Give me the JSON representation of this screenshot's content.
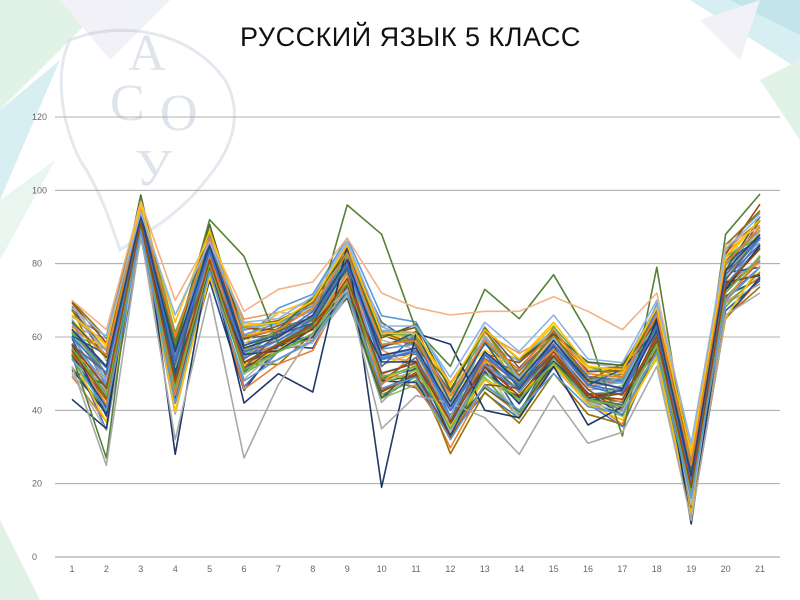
{
  "slide": {
    "title": "РУССКИЙ ЯЗЫК 5 КЛАСС",
    "logo_letters": [
      "А",
      "С",
      "О",
      "У"
    ]
  },
  "colors": {
    "gridline": "#9a9a9a",
    "axis": "#9a9a9a",
    "background": "#ffffff",
    "decor": [
      "#b7e3ea",
      "#c7ead2",
      "#e6e6f2"
    ],
    "series_palette": [
      "#4472c4",
      "#ed7d31",
      "#a5a5a5",
      "#ffc000",
      "#5b9bd5",
      "#70ad47",
      "#264478",
      "#9e480e",
      "#636363",
      "#997300",
      "#255e91",
      "#43682b",
      "#698ed0",
      "#f1975a",
      "#b7b7b7",
      "#ffcd33",
      "#7cafdd",
      "#8cc168"
    ]
  },
  "chart_data": {
    "type": "line",
    "title": "РУССКИЙ ЯЗЫК 5 КЛАСС",
    "xlabel": "",
    "ylabel": "",
    "x": [
      1,
      2,
      3,
      4,
      5,
      6,
      7,
      8,
      9,
      10,
      11,
      12,
      13,
      14,
      15,
      16,
      17,
      18,
      19,
      20,
      21
    ],
    "x_tick_labels": [
      "1",
      "2",
      "3",
      "4",
      "5",
      "6",
      "7",
      "8",
      "9",
      "10",
      "11",
      "12",
      "13",
      "14",
      "15",
      "16",
      "17",
      "18",
      "19",
      "20",
      "21"
    ],
    "y_tick_labels": [
      "0",
      "20",
      "40",
      "60",
      "80",
      "100",
      "120"
    ],
    "ylim": [
      0,
      120
    ],
    "grid": true,
    "legend": "none",
    "series_count": 60,
    "band": {
      "center": [
        60,
        48,
        93,
        50,
        83,
        55,
        60,
        64,
        78,
        53,
        55,
        38,
        54,
        46,
        57,
        46,
        45,
        62,
        22,
        75,
        85
      ],
      "spread": [
        9,
        12,
        5,
        10,
        6,
        8,
        6,
        6,
        7,
        10,
        7,
        8,
        8,
        8,
        6,
        6,
        7,
        7,
        10,
        9,
        10
      ]
    },
    "series": [
      {
        "values": [
          43,
          35,
          97,
          28,
          81,
          42,
          50,
          45,
          85,
          19,
          61,
          58,
          40,
          38,
          52,
          36,
          41,
          65,
          9,
          73,
          85
        ]
      },
      {
        "values": [
          55,
          27,
          98,
          58,
          92,
          82,
          58,
          63,
          96,
          88,
          62,
          52,
          73,
          65,
          77,
          61,
          33,
          79,
          22,
          88,
          99
        ]
      },
      {
        "values": [
          70,
          62,
          97,
          70,
          87,
          67,
          73,
          75,
          87,
          72,
          68,
          66,
          67,
          67,
          71,
          67,
          62,
          72,
          30,
          85,
          90
        ]
      },
      {
        "values": [
          52,
          25,
          88,
          32,
          72,
          27,
          47,
          61,
          73,
          35,
          44,
          42,
          38,
          28,
          44,
          31,
          34,
          52,
          10,
          66,
          72
        ]
      },
      {
        "values": [
          60,
          50,
          92,
          54,
          84,
          56,
          59,
          65,
          80,
          54,
          56,
          40,
          55,
          47,
          58,
          47,
          45,
          63,
          20,
          77,
          87
        ]
      },
      {
        "values": [
          63,
          55,
          95,
          60,
          87,
          60,
          62,
          68,
          83,
          58,
          59,
          44,
          59,
          51,
          62,
          50,
          49,
          66,
          25,
          80,
          90
        ]
      },
      {
        "values": [
          57,
          44,
          90,
          46,
          80,
          51,
          56,
          61,
          75,
          49,
          52,
          35,
          50,
          43,
          53,
          43,
          41,
          58,
          18,
          72,
          82
        ]
      },
      {
        "values": [
          66,
          58,
          96,
          64,
          89,
          63,
          64,
          70,
          85,
          61,
          61,
          47,
          62,
          54,
          64,
          52,
          51,
          68,
          28,
          82,
          92
        ]
      },
      {
        "values": [
          54,
          40,
          89,
          42,
          78,
          48,
          54,
          59,
          72,
          46,
          49,
          32,
          47,
          40,
          50,
          41,
          39,
          56,
          16,
          70,
          79
        ]
      },
      {
        "values": [
          62,
          52,
          93,
          56,
          85,
          57,
          60,
          66,
          81,
          55,
          57,
          41,
          56,
          48,
          59,
          48,
          46,
          64,
          22,
          78,
          88
        ]
      },
      {
        "values": [
          58,
          46,
          91,
          48,
          81,
          53,
          58,
          62,
          76,
          50,
          53,
          37,
          52,
          44,
          55,
          44,
          43,
          60,
          19,
          74,
          84
        ]
      },
      {
        "values": [
          68,
          60,
          94,
          66,
          86,
          64,
          65,
          71,
          86,
          63,
          63,
          49,
          64,
          56,
          66,
          54,
          53,
          70,
          31,
          84,
          93
        ]
      }
    ]
  }
}
